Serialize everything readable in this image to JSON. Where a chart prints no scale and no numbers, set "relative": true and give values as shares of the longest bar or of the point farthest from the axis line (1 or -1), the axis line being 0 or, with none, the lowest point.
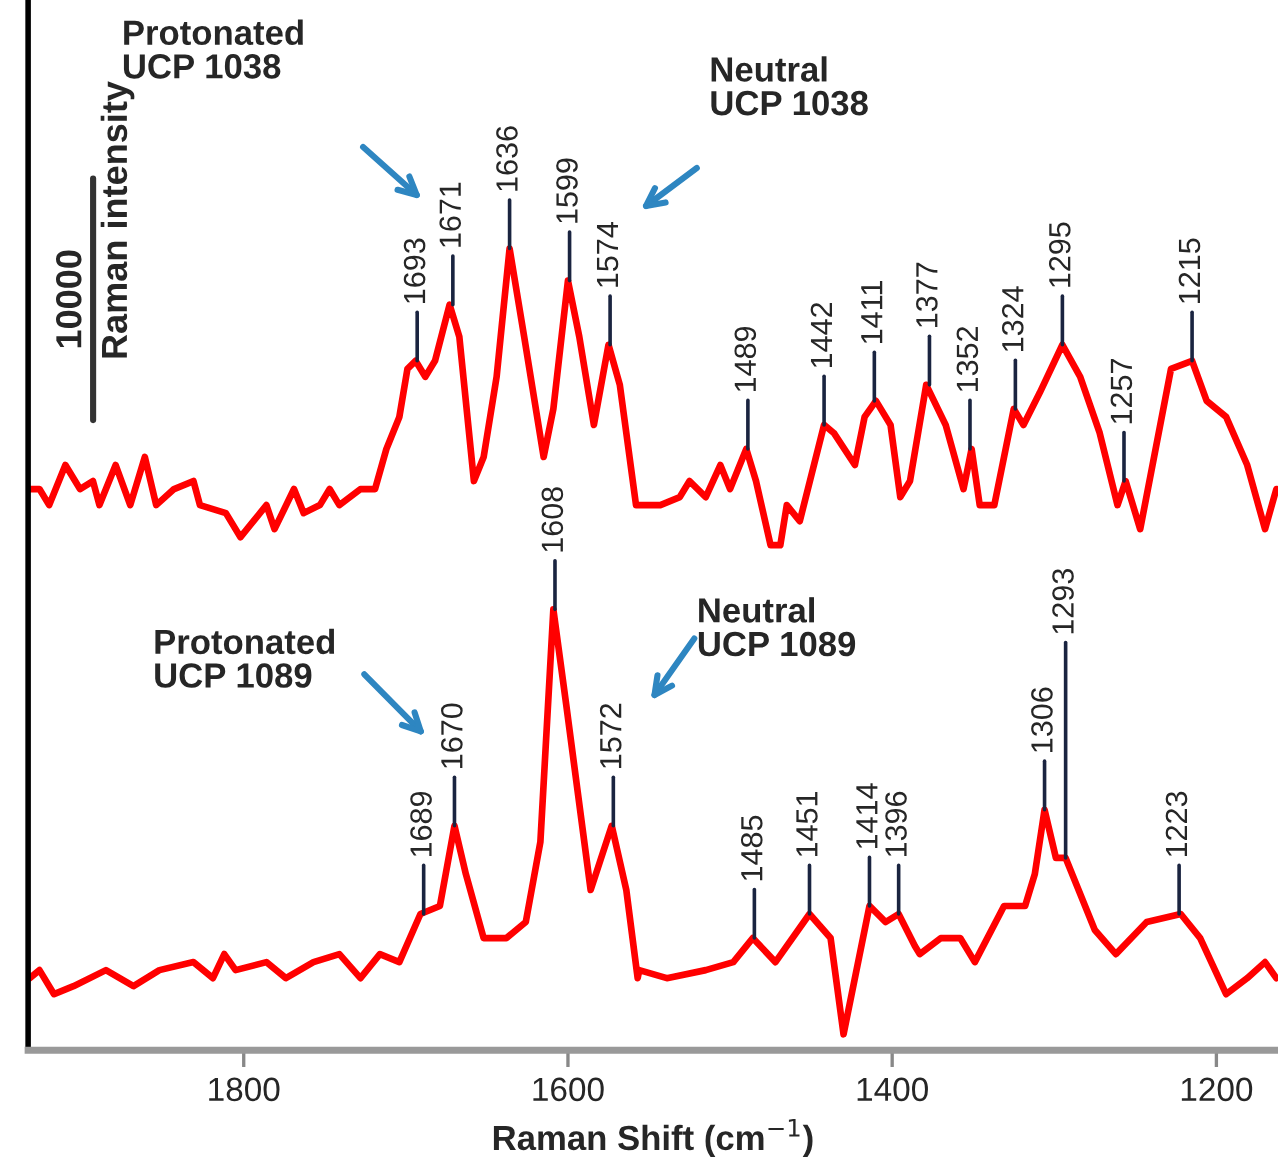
{
  "chart_data": {
    "type": "line",
    "relative": true,
    "xlabel": "Raman Shift (cm$^{−1}$)",
    "ylabel": "Raman intensity",
    "xlim": [
      1933,
      1162
    ],
    "xticks": [
      1800,
      1600,
      1400,
      1200
    ],
    "tick_labels": "x",
    "line_style": "solid",
    "series": [
      {
        "color": "#ff0000",
        "x": [
          1932,
          1926,
          1920,
          1910,
          1901,
          1893,
          1889,
          1879,
          1870,
          1861,
          1854,
          1843,
          1831,
          1827,
          1811,
          1802,
          1794,
          1786,
          1781,
          1769,
          1763,
          1753,
          1747,
          1741,
          1728,
          1719,
          1712,
          1704,
          1699,
          1694,
          1688,
          1682,
          1673,
          1667,
          1658,
          1652,
          1644,
          1636,
          1627,
          1615,
          1609,
          1600,
          1593,
          1584,
          1575,
          1568,
          1558,
          1556,
          1543,
          1531,
          1525,
          1515,
          1506,
          1500,
          1490,
          1484,
          1475,
          1469,
          1465,
          1457,
          1442,
          1436,
          1423,
          1417,
          1410,
          1401,
          1395,
          1389,
          1379,
          1367,
          1356,
          1351,
          1346,
          1337,
          1325,
          1319,
          1309,
          1295,
          1284,
          1272,
          1261,
          1256,
          1247,
          1228,
          1215,
          1206,
          1194,
          1181,
          1170,
          1163
        ],
        "values": [
          0.7,
          0.7,
          0.68,
          0.73,
          0.7,
          0.71,
          0.68,
          0.73,
          0.68,
          0.74,
          0.68,
          0.7,
          0.71,
          0.68,
          0.67,
          0.64,
          0.66,
          0.68,
          0.65,
          0.7,
          0.67,
          0.68,
          0.7,
          0.68,
          0.7,
          0.7,
          0.75,
          0.79,
          0.85,
          0.86,
          0.84,
          0.86,
          0.93,
          0.89,
          0.71,
          0.74,
          0.84,
          1.0,
          0.89,
          0.74,
          0.8,
          0.96,
          0.89,
          0.78,
          0.88,
          0.83,
          0.68,
          0.68,
          0.68,
          0.69,
          0.71,
          0.69,
          0.73,
          0.7,
          0.75,
          0.71,
          0.63,
          0.63,
          0.68,
          0.66,
          0.78,
          0.77,
          0.73,
          0.79,
          0.81,
          0.78,
          0.69,
          0.71,
          0.83,
          0.78,
          0.7,
          0.75,
          0.68,
          0.68,
          0.8,
          0.78,
          0.82,
          0.88,
          0.84,
          0.77,
          0.68,
          0.71,
          0.65,
          0.85,
          0.86,
          0.81,
          0.79,
          0.73,
          0.65,
          0.7
        ]
      },
      {
        "color": "#ff0000",
        "x": [
          1932,
          1926,
          1917,
          1905,
          1885,
          1868,
          1852,
          1831,
          1819,
          1812,
          1805,
          1786,
          1774,
          1757,
          1741,
          1728,
          1716,
          1704,
          1691,
          1679,
          1670,
          1663,
          1652,
          1638,
          1626,
          1617,
          1609,
          1601,
          1586,
          1573,
          1564,
          1557,
          1556,
          1539,
          1515,
          1498,
          1486,
          1472,
          1451,
          1438,
          1430,
          1414,
          1404,
          1396,
          1386,
          1383,
          1370,
          1358,
          1349,
          1331,
          1318,
          1312,
          1306,
          1299,
          1293,
          1275,
          1262,
          1243,
          1222,
          1210,
          1194,
          1181,
          1170,
          1163
        ],
        "values": [
          0.09,
          0.1,
          0.07,
          0.08,
          0.1,
          0.08,
          0.1,
          0.11,
          0.09,
          0.12,
          0.1,
          0.11,
          0.09,
          0.11,
          0.12,
          0.09,
          0.12,
          0.11,
          0.17,
          0.18,
          0.28,
          0.22,
          0.14,
          0.14,
          0.16,
          0.26,
          0.55,
          0.43,
          0.2,
          0.28,
          0.2,
          0.09,
          0.1,
          0.09,
          0.1,
          0.11,
          0.14,
          0.11,
          0.17,
          0.14,
          0.02,
          0.18,
          0.16,
          0.17,
          0.13,
          0.12,
          0.14,
          0.14,
          0.11,
          0.18,
          0.18,
          0.22,
          0.3,
          0.24,
          0.24,
          0.15,
          0.12,
          0.16,
          0.17,
          0.14,
          0.07,
          0.09,
          0.11,
          0.09
        ]
      }
    ],
    "annotations": [
      {
        "text": "1693",
        "x": 1693,
        "y": 0.86
      },
      {
        "text": "1671",
        "x": 1671,
        "y": 0.93
      },
      {
        "text": "1636",
        "x": 1636,
        "y": 1.0
      },
      {
        "text": "1599",
        "x": 1599,
        "y": 0.96
      },
      {
        "text": "1574",
        "x": 1574,
        "y": 0.88
      },
      {
        "text": "1489",
        "x": 1489,
        "y": 0.75
      },
      {
        "text": "1442",
        "x": 1442,
        "y": 0.78
      },
      {
        "text": "1411",
        "x": 1411,
        "y": 0.81
      },
      {
        "text": "1377",
        "x": 1377,
        "y": 0.83
      },
      {
        "text": "1352",
        "x": 1352,
        "y": 0.75
      },
      {
        "text": "1324",
        "x": 1324,
        "y": 0.8
      },
      {
        "text": "1295",
        "x": 1295,
        "y": 0.88
      },
      {
        "text": "1257",
        "x": 1257,
        "y": 0.71
      },
      {
        "text": "1215",
        "x": 1215,
        "y": 0.86
      },
      {
        "text": "1689",
        "x": 1689,
        "y": 0.17
      },
      {
        "text": "1670",
        "x": 1670,
        "y": 0.28
      },
      {
        "text": "1608",
        "x": 1608,
        "y": 0.55
      },
      {
        "text": "1572",
        "x": 1572,
        "y": 0.28
      },
      {
        "text": "1485",
        "x": 1485,
        "y": 0.14
      },
      {
        "text": "1451",
        "x": 1451,
        "y": 0.17
      },
      {
        "text": "1414",
        "x": 1414,
        "y": 0.18
      },
      {
        "text": "1396",
        "x": 1396,
        "y": 0.17
      },
      {
        "text": "1306",
        "x": 1306,
        "y": 0.3
      },
      {
        "text": "1293",
        "x": 1293,
        "y": 0.24
      },
      {
        "text": "1223",
        "x": 1223,
        "y": 0.17
      },
      "Protonated\nUCP 1038",
      "Neutral\nUCP 1038",
      "Protonated\nUCP 1089",
      "Neutral\nUCP 1089",
      "10000"
    ]
  }
}
